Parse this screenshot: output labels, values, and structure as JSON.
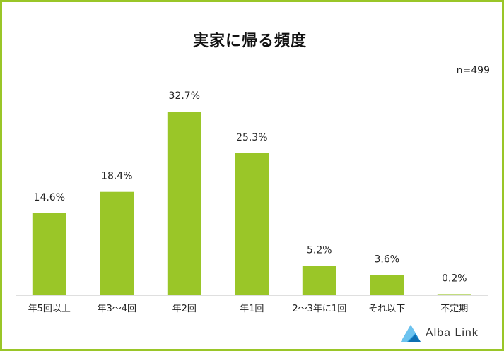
{
  "chart_data": {
    "type": "bar",
    "title": "実家に帰る頻度",
    "sample_size": "n=499",
    "categories": [
      "年5回以上",
      "年3～4回",
      "年2回",
      "年1回",
      "2～3年に1回",
      "それ以下",
      "不定期"
    ],
    "values": [
      14.6,
      18.4,
      32.7,
      25.3,
      5.2,
      3.6,
      0.2
    ],
    "value_labels": [
      "14.6%",
      "18.4%",
      "32.7%",
      "25.3%",
      "5.2%",
      "3.6%",
      "0.2%"
    ],
    "ylim": [
      0,
      35
    ],
    "grid": false,
    "legend": "none",
    "bar_color": "#9ac628"
  },
  "brand": {
    "name": "Alba Link",
    "colors": [
      "#1d8fd6",
      "#6cc3ef"
    ]
  }
}
